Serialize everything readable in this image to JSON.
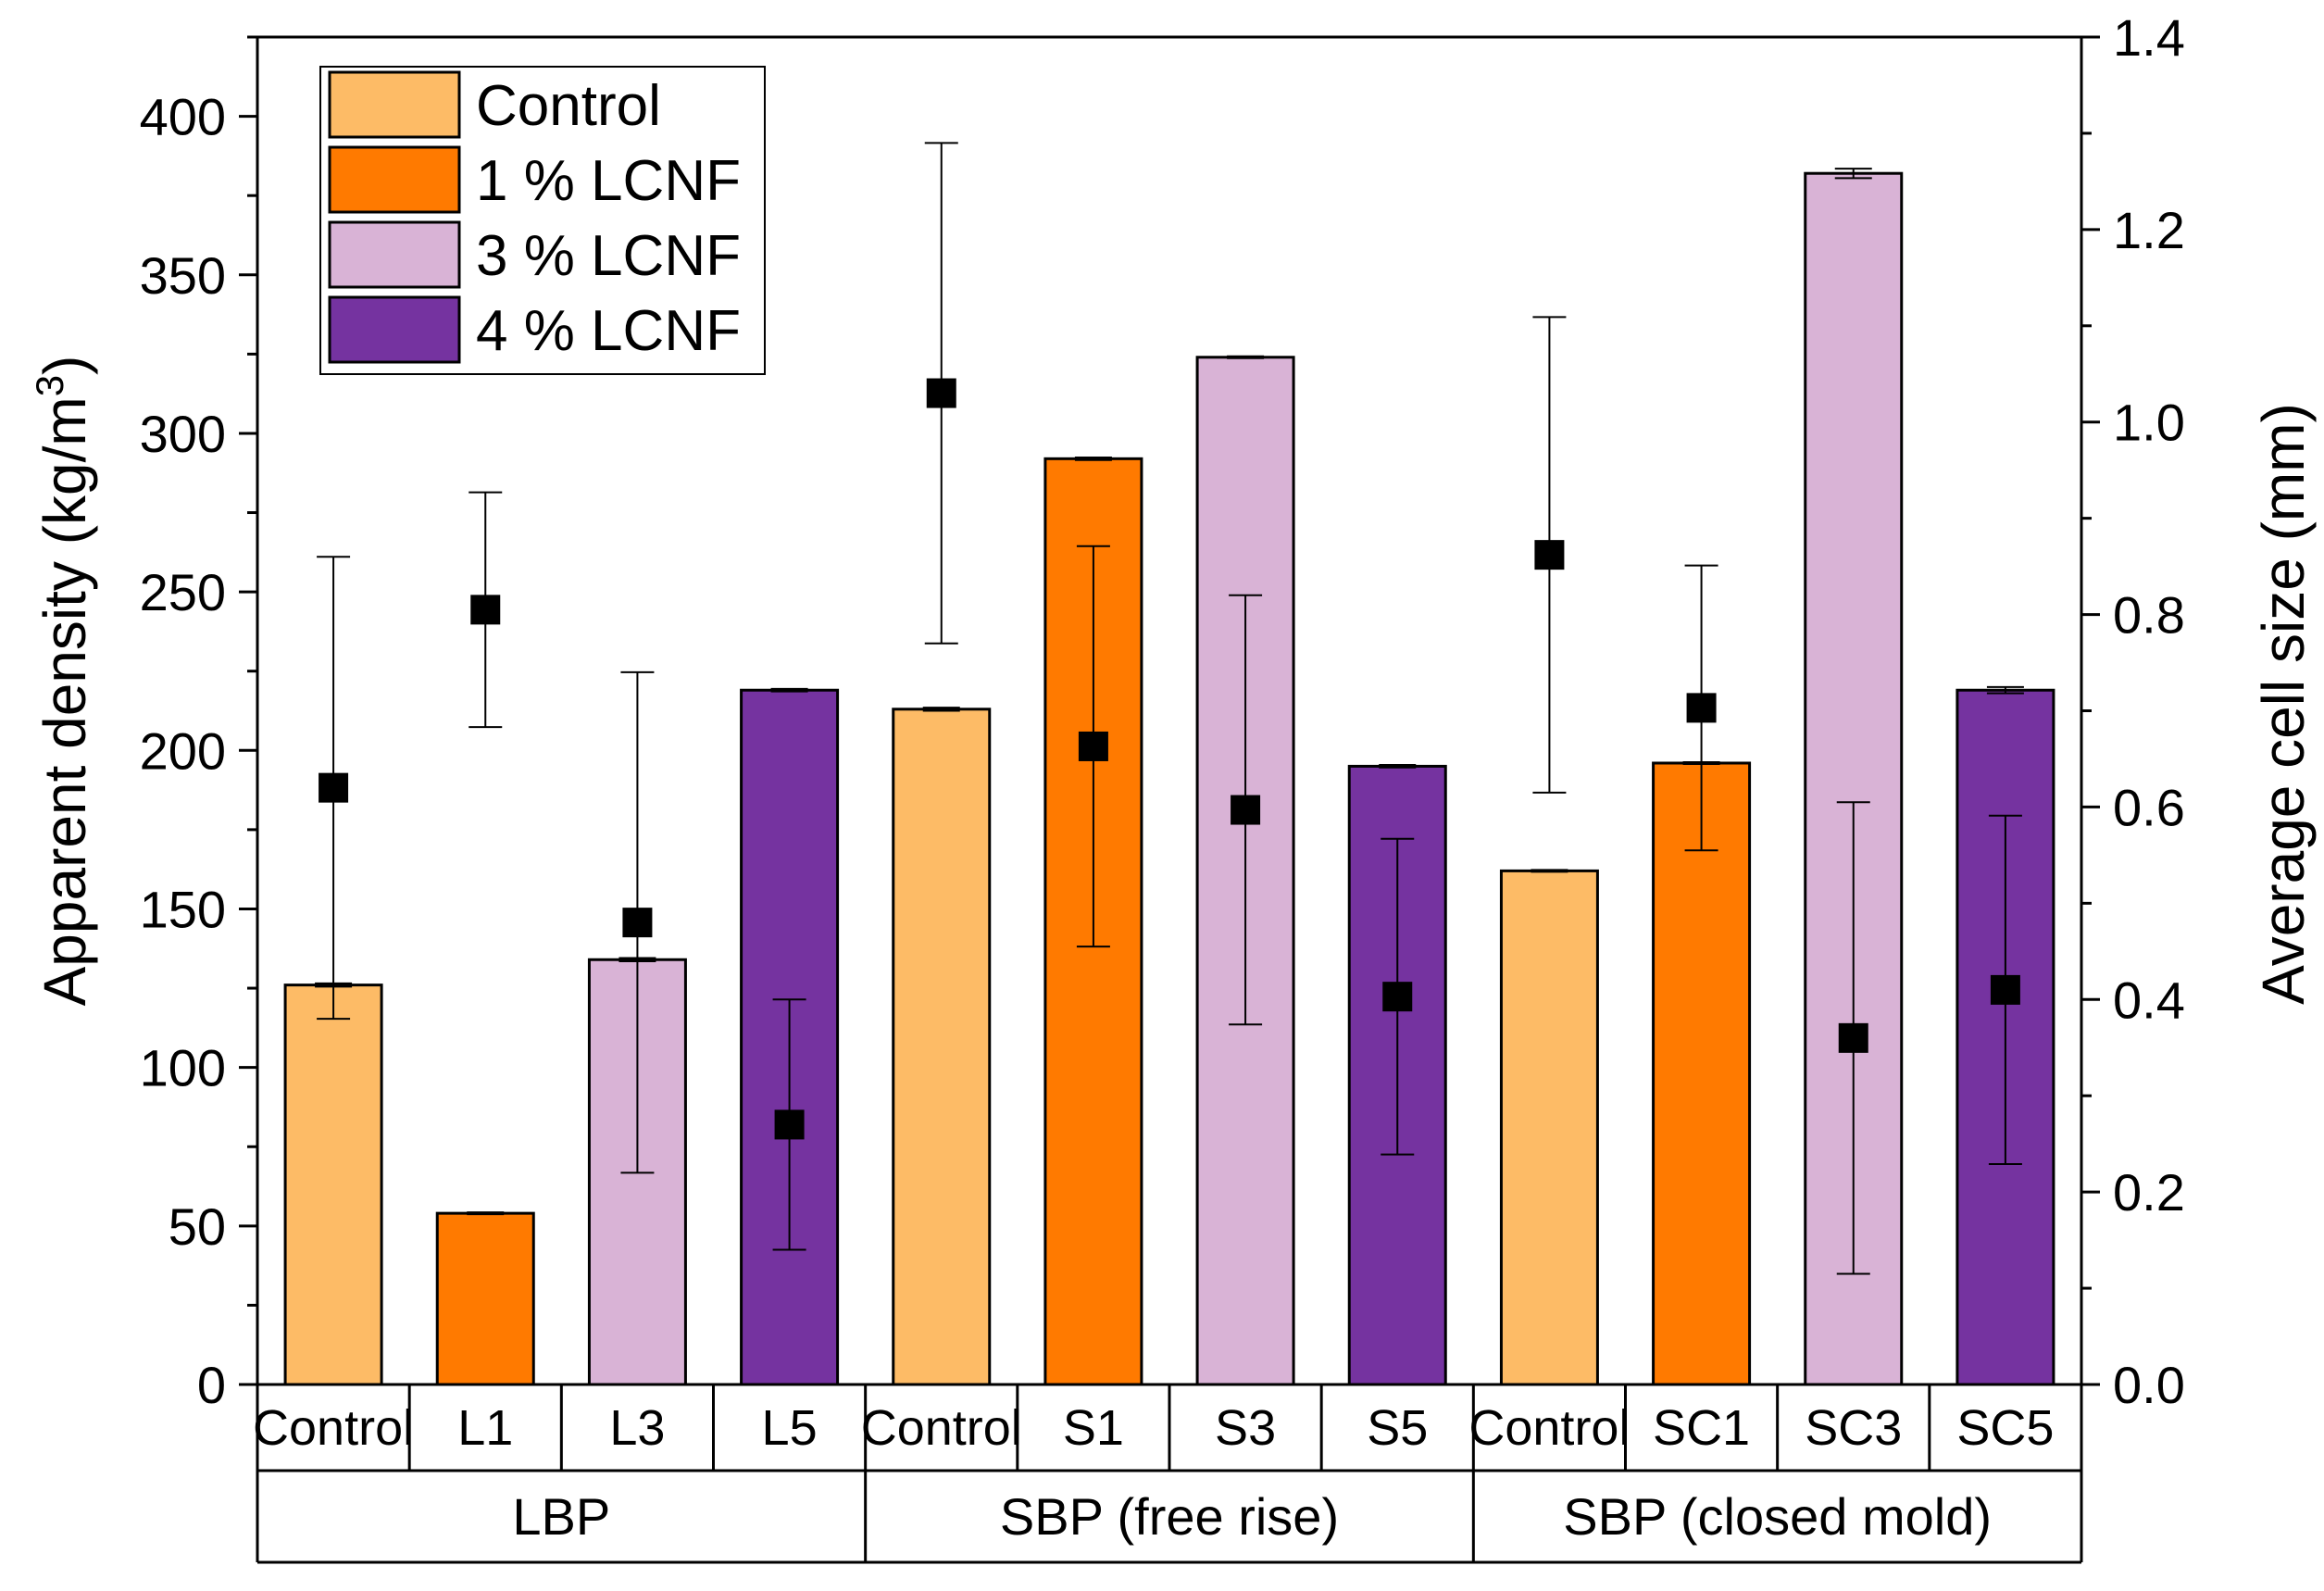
{
  "chart_data": {
    "type": "bar",
    "categories": [
      "Control",
      "L1",
      "L3",
      "L5",
      "Control",
      "S1",
      "S3",
      "S5",
      "Control",
      "SC1",
      "SC3",
      "SC5"
    ],
    "groups": [
      {
        "label": "LBP",
        "categories": [
          "Control",
          "L1",
          "L3",
          "L5"
        ]
      },
      {
        "label": "SBP (free rise)",
        "categories": [
          "Control",
          "S1",
          "S3",
          "S5"
        ]
      },
      {
        "label": "SBP (closed mold)",
        "categories": [
          "Control",
          "SC1",
          "SC3",
          "SC5"
        ]
      }
    ],
    "series_names": [
      "Control",
      "1 % LCNF",
      "3 % LCNF",
      "4 % LCNF"
    ],
    "series_colors": [
      "#FDBB66",
      "#FF7A00",
      "#D9B3D6",
      "#7533A0"
    ],
    "bar_series_index": [
      0,
      1,
      2,
      3,
      0,
      1,
      2,
      3,
      0,
      1,
      2,
      3
    ],
    "density": {
      "name": "Apparent density (kg/m3)",
      "values": [
        126,
        54,
        134,
        219,
        213,
        292,
        324,
        195,
        162,
        196,
        382,
        219
      ],
      "errors": [
        0.5,
        0.3,
        0.5,
        0.4,
        0.5,
        0.4,
        0.3,
        0.4,
        0.3,
        0.3,
        1.5,
        1.0
      ]
    },
    "cell_size": {
      "name": "Average cell size (mm)",
      "values": [
        0.62,
        0.805,
        0.48,
        0.27,
        1.03,
        0.663,
        0.597,
        0.403,
        0.862,
        0.703,
        0.36,
        0.41
      ],
      "errors": [
        0.24,
        0.122,
        0.26,
        0.13,
        0.26,
        0.208,
        0.223,
        0.164,
        0.247,
        0.148,
        0.245,
        0.181
      ]
    },
    "title": "",
    "ylabel": "Apparent density (kg/m",
    "ylabel_sup": "3",
    "ylabel_end": ")",
    "y2label": "Average cell size (mm)",
    "ylim": [
      0,
      425
    ],
    "y2lim": [
      0,
      1.4
    ],
    "yticks": [
      "0",
      "50",
      "100",
      "150",
      "200",
      "250",
      "300",
      "350",
      "400"
    ],
    "y2ticks": [
      "0.0",
      "0.2",
      "0.4",
      "0.6",
      "0.8",
      "1.0",
      "1.2",
      "1.4"
    ],
    "legend_position": "top-left"
  }
}
